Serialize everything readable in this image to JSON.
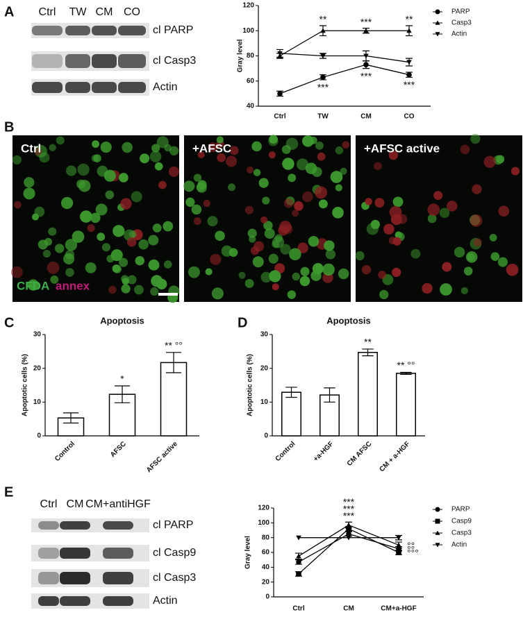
{
  "panels": {
    "a": "A",
    "b": "B",
    "c": "C",
    "d": "D",
    "e": "E"
  },
  "blot_a": {
    "lanes": [
      "Ctrl",
      "TW",
      "CM",
      "CO"
    ],
    "bands": [
      "cl PARP",
      "cl Casp3",
      "Actin"
    ]
  },
  "micrographs": {
    "labels": [
      "Ctrl",
      "+AFSC",
      "+AFSC active"
    ],
    "stain_1": "CFDA",
    "stain_2": "annex"
  },
  "blot_e": {
    "lanes": [
      "Ctrl",
      "CM",
      "CM+antiHGF"
    ],
    "bands": [
      "cl PARP",
      "cl Casp9",
      "cl Casp3",
      "Actin"
    ]
  },
  "chart_data": [
    {
      "type": "line",
      "y_label": "Gray level",
      "categories": [
        "Ctrl",
        "TW",
        "CM",
        "CO"
      ],
      "ylim": [
        40,
        120
      ],
      "yticks": [
        40,
        60,
        80,
        100,
        120
      ],
      "series": [
        {
          "name": "PARP",
          "marker": "circle",
          "color": "#000000",
          "values": [
            50,
            63,
            73,
            65
          ],
          "errors": [
            2,
            2,
            3,
            2
          ],
          "stars": [
            null,
            "***",
            "***",
            "***"
          ]
        },
        {
          "name": "Casp3",
          "marker": "triangle-up",
          "color": "#000000",
          "values": [
            80,
            100,
            100,
            100
          ],
          "errors": [
            2,
            4,
            2,
            4
          ],
          "stars": [
            null,
            "**",
            "***",
            "**"
          ]
        },
        {
          "name": "Actin",
          "marker": "triangle-down",
          "color": "#000000",
          "values": [
            82,
            80,
            80,
            75
          ],
          "errors": [
            3,
            2,
            4,
            3
          ],
          "stars": [
            null,
            null,
            null,
            null
          ]
        }
      ]
    },
    {
      "type": "bar",
      "title": "Apoptosis",
      "y_label": "Apoptotic cells (%)",
      "categories": [
        "Control",
        "AFSC",
        "AFSC active"
      ],
      "values": [
        5.3,
        12.3,
        21.7
      ],
      "errors": [
        1.5,
        2.5,
        3
      ],
      "stars": [
        null,
        "*",
        "** °°"
      ],
      "color": "#ffffff",
      "ylim": [
        0,
        30
      ],
      "yticks": [
        0,
        10,
        20,
        30
      ]
    },
    {
      "type": "bar",
      "title": "Apoptosis",
      "y_label": "Apoptotic cells (%)",
      "categories": [
        "Control",
        "+a-HGF",
        "CM AFSC",
        "CM + a-HGF"
      ],
      "values": [
        12.9,
        12.1,
        24.7,
        18.5
      ],
      "errors": [
        1.5,
        2.1,
        1,
        0.3
      ],
      "stars": [
        null,
        null,
        "**",
        "** °°"
      ],
      "color": "#ffffff",
      "ylim": [
        0,
        30
      ],
      "yticks": [
        0,
        10,
        20,
        30
      ]
    },
    {
      "type": "line",
      "y_label": "Gray level",
      "categories": [
        "Ctrl",
        "CM",
        "CM+a-HGF"
      ],
      "ylim": [
        0,
        120
      ],
      "yticks": [
        0,
        20,
        40,
        60,
        80,
        100,
        120
      ],
      "series": [
        {
          "name": "PARP",
          "marker": "circle",
          "color": "#000000",
          "values": [
            47,
            85,
            65
          ],
          "errors": [
            3,
            3,
            3
          ],
          "stars": [
            null,
            "***",
            "°°"
          ]
        },
        {
          "name": "Casp9",
          "marker": "square",
          "color": "#000000",
          "values": [
            31,
            92,
            60
          ],
          "errors": [
            3,
            3,
            3
          ],
          "stars": [
            null,
            "***",
            "°°°"
          ]
        },
        {
          "name": "Casp3",
          "marker": "triangle-up",
          "color": "#000000",
          "values": [
            55,
            97,
            70
          ],
          "errors": [
            4,
            4,
            4
          ],
          "stars": [
            null,
            "***",
            "°°"
          ]
        },
        {
          "name": "Actin",
          "marker": "triangle-down",
          "color": "#000000",
          "values": [
            80,
            80,
            80
          ],
          "errors": [
            0,
            0,
            3
          ],
          "stars": [
            null,
            null,
            null
          ]
        }
      ]
    }
  ]
}
